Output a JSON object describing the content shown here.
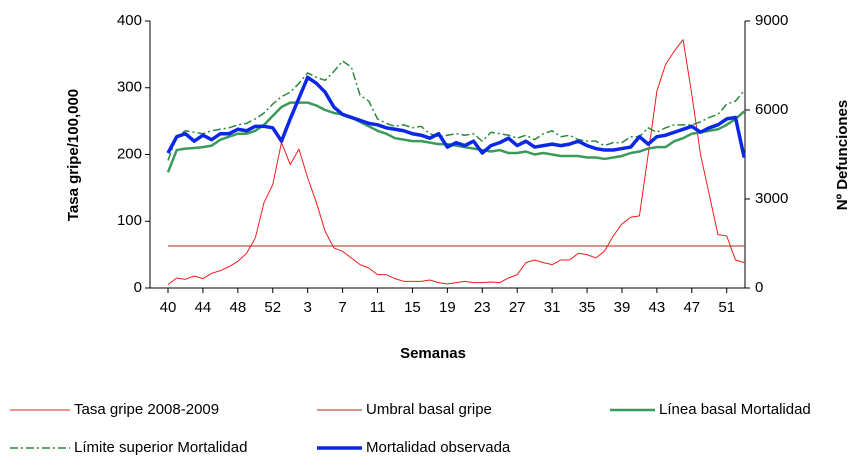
{
  "chart_data": {
    "type": "line",
    "x_label": "Semanas",
    "y_label": "Tasa gripe/100,000",
    "y2_label": "Nº Defunciones",
    "categories": [
      "40",
      null,
      null,
      null,
      "44",
      null,
      null,
      null,
      "48",
      null,
      null,
      null,
      "52",
      null,
      null,
      null,
      "3",
      null,
      null,
      null,
      "7",
      null,
      null,
      null,
      "11",
      null,
      null,
      null,
      "15",
      null,
      null,
      null,
      "19",
      null,
      null,
      null,
      "23",
      null,
      null,
      null,
      "27",
      null,
      null,
      null,
      "31",
      null,
      null,
      null,
      "35",
      null,
      null,
      null,
      "39",
      null,
      null,
      null,
      "43",
      null,
      null,
      null,
      "47",
      null,
      null,
      null,
      "51",
      null,
      null
    ],
    "ylim": [
      0,
      400
    ],
    "yticks": [
      0,
      100,
      200,
      300,
      400
    ],
    "y2lim": [
      0,
      9000
    ],
    "y2ticks": [
      0,
      3000,
      6000,
      9000
    ],
    "series": [
      {
        "name": "Tasa gripe 2008-2009",
        "color": "#ee1c1c",
        "linewidth": 1,
        "linestyle": "solid",
        "axis": "y",
        "values": [
          5,
          15,
          13,
          18,
          14,
          22,
          26,
          32,
          40,
          52,
          75,
          128,
          155,
          218,
          185,
          208,
          165,
          128,
          85,
          60,
          55,
          45,
          35,
          30,
          20,
          20,
          14,
          10,
          10,
          10,
          12,
          8,
          6,
          8,
          10,
          8,
          8,
          9,
          8,
          15,
          20,
          38,
          42,
          38,
          35,
          42,
          42,
          52,
          50,
          45,
          55,
          78,
          96,
          106,
          108,
          200,
          295,
          335,
          355,
          372,
          290,
          200,
          140,
          80,
          78,
          42,
          38
        ]
      },
      {
        "name": "Umbral basal gripe",
        "color": "#a52a1a",
        "linewidth": 1,
        "linestyle": "solid",
        "axis": "y",
        "values": [
          63,
          63,
          63,
          63,
          63,
          63,
          63,
          63,
          63,
          63,
          63,
          63,
          63,
          63,
          63,
          63,
          63,
          63,
          63,
          63,
          63,
          63,
          63,
          63,
          63,
          63,
          63,
          63,
          63,
          63,
          63,
          63,
          63,
          63,
          63,
          63,
          63,
          63,
          63,
          63,
          63,
          63,
          63,
          63,
          63,
          63,
          63,
          63,
          63,
          63,
          63,
          63,
          63,
          63,
          63,
          63,
          63,
          63,
          63,
          63,
          63,
          63,
          63,
          63,
          63,
          63,
          63
        ]
      },
      {
        "name": "Línea basal Mortalidad",
        "color": "#3a9a5a",
        "linewidth": 2.5,
        "linestyle": "solid",
        "axis": "y2",
        "values": [
          3900,
          4650,
          4700,
          4720,
          4750,
          4800,
          5000,
          5100,
          5200,
          5200,
          5300,
          5500,
          5800,
          6100,
          6250,
          6250,
          6250,
          6150,
          6000,
          5900,
          5850,
          5750,
          5600,
          5450,
          5300,
          5200,
          5050,
          5000,
          4950,
          4950,
          4900,
          4850,
          4850,
          4800,
          4750,
          4700,
          4650,
          4600,
          4650,
          4550,
          4550,
          4600,
          4500,
          4550,
          4500,
          4450,
          4450,
          4450,
          4400,
          4400,
          4350,
          4400,
          4450,
          4550,
          4600,
          4700,
          4750,
          4750,
          4950,
          5050,
          5200,
          5250,
          5300,
          5350,
          5500,
          5700,
          5950
        ]
      },
      {
        "name": "Límite superior Mortalidad",
        "color": "#2a8a3a",
        "linewidth": 1.5,
        "linestyle": "dashdot",
        "axis": "y2",
        "values": [
          4300,
          5100,
          5300,
          5250,
          5200,
          5300,
          5350,
          5400,
          5500,
          5550,
          5700,
          5900,
          6200,
          6450,
          6600,
          6900,
          7250,
          7100,
          7000,
          7300,
          7650,
          7450,
          6500,
          6300,
          5700,
          5550,
          5450,
          5500,
          5400,
          5450,
          5200,
          5100,
          5150,
          5200,
          5150,
          5200,
          4950,
          5250,
          5200,
          5150,
          5050,
          5150,
          5000,
          5200,
          5300,
          5100,
          5150,
          5000,
          4950,
          4950,
          4800,
          4900,
          4900,
          5100,
          5100,
          5400,
          5250,
          5400,
          5500,
          5500,
          5500,
          5600,
          5750,
          5850,
          6200,
          6300,
          6650
        ]
      },
      {
        "name": "Mortalidad observada",
        "color": "#0a28e6",
        "linewidth": 3.5,
        "linestyle": "solid",
        "axis": "y2",
        "values": [
          4550,
          5100,
          5200,
          4950,
          5150,
          5000,
          5200,
          5200,
          5350,
          5300,
          5450,
          5450,
          5400,
          4950,
          5700,
          6400,
          7100,
          6900,
          6600,
          6100,
          5850,
          5750,
          5650,
          5550,
          5500,
          5400,
          5350,
          5300,
          5200,
          5150,
          5050,
          5200,
          4750,
          4900,
          4800,
          4950,
          4550,
          4800,
          4900,
          5050,
          4800,
          4950,
          4750,
          4800,
          4850,
          4800,
          4850,
          4950,
          4800,
          4700,
          4650,
          4650,
          4700,
          4750,
          5100,
          4850,
          5100,
          5150,
          5250,
          5350,
          5450,
          5250,
          5400,
          5500,
          5700,
          5750,
          4400
        ]
      }
    ]
  }
}
